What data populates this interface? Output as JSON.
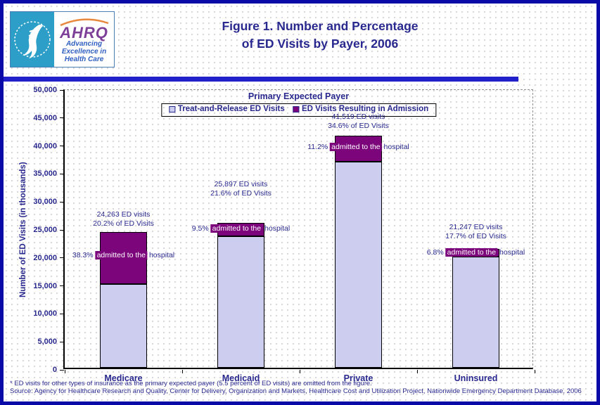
{
  "header": {
    "title_line1": "Figure 1. Number and Percentage",
    "title_line2": "of ED Visits by Payer, 2006",
    "logo": {
      "acronym": "AHRQ",
      "tagline_line1": "Advancing",
      "tagline_line2": "Excellence in",
      "tagline_line3": "Health Care"
    }
  },
  "chart_data": {
    "type": "bar",
    "stacked": true,
    "inner_title": "Primary Expected Payer",
    "ylabel": "Number of ED Visits (in thousands)",
    "ylim": [
      0,
      50000
    ],
    "ytick_step": 5000,
    "ytick_labels": [
      "0",
      "5,000",
      "10,000",
      "15,000",
      "20,000",
      "25,000",
      "30,000",
      "35,000",
      "40,000",
      "45,000",
      "50,000"
    ],
    "categories": [
      "Medicare",
      "Medicaid",
      "Private",
      "Uninsured"
    ],
    "series": [
      {
        "name": "Treat-and-Release ED Visits",
        "color": "#CDCDF0",
        "values": [
          14970,
          23437,
          36869,
          19802
        ]
      },
      {
        "name": "ED Visits Resulting in Admission",
        "color": "#7C057C",
        "values": [
          9293,
          2460,
          4650,
          1445
        ]
      }
    ],
    "totals": [
      24263,
      25897,
      41519,
      21247
    ],
    "annotations": [
      {
        "total": "24,263 ED visits",
        "pct": "20.2% of ED Visits",
        "admit_pct": "38.3%",
        "admit_mid": "admitted to the",
        "admit_tail": "hospital"
      },
      {
        "total": "25,897 ED visits",
        "pct": "21.6% of ED Visits",
        "admit_pct": "9.5%",
        "admit_mid": "admitted to the",
        "admit_tail": "hospital"
      },
      {
        "total": "41,519 ED visits",
        "pct": "34.6% of ED Visits",
        "admit_pct": "11.2%",
        "admit_mid": "admitted to the",
        "admit_tail": "hospital"
      },
      {
        "total": "21,247 ED visits",
        "pct": "17.7% of ED Visits",
        "admit_pct": "6.8%",
        "admit_mid": "admitted to the",
        "admit_tail": "hospital"
      }
    ],
    "legend_position": "top-center",
    "grid": false
  },
  "footnotes": {
    "line1": "* ED visits for other types of insurance as the primary expected payer (5.5 percent of ED visits) are omitted from the figure.",
    "line2": "Source: Agency for Healthcare Research and Quality, Center for Delivery, Organization and Markets, Healthcare Cost and Utilization Project, Nationwide Emergency Department Database, 2006"
  },
  "colors": {
    "text_navy": "#28288E",
    "treat_release_fill": "#CDCDF0",
    "admission_fill": "#7C057C",
    "divider_blue": "#2121CC",
    "outer_border_blue": "#0A0AA8",
    "seal_teal": "#2D9EC7",
    "ahrq_purple": "#7D3F98",
    "tagline_blue": "#2F5FC0"
  }
}
